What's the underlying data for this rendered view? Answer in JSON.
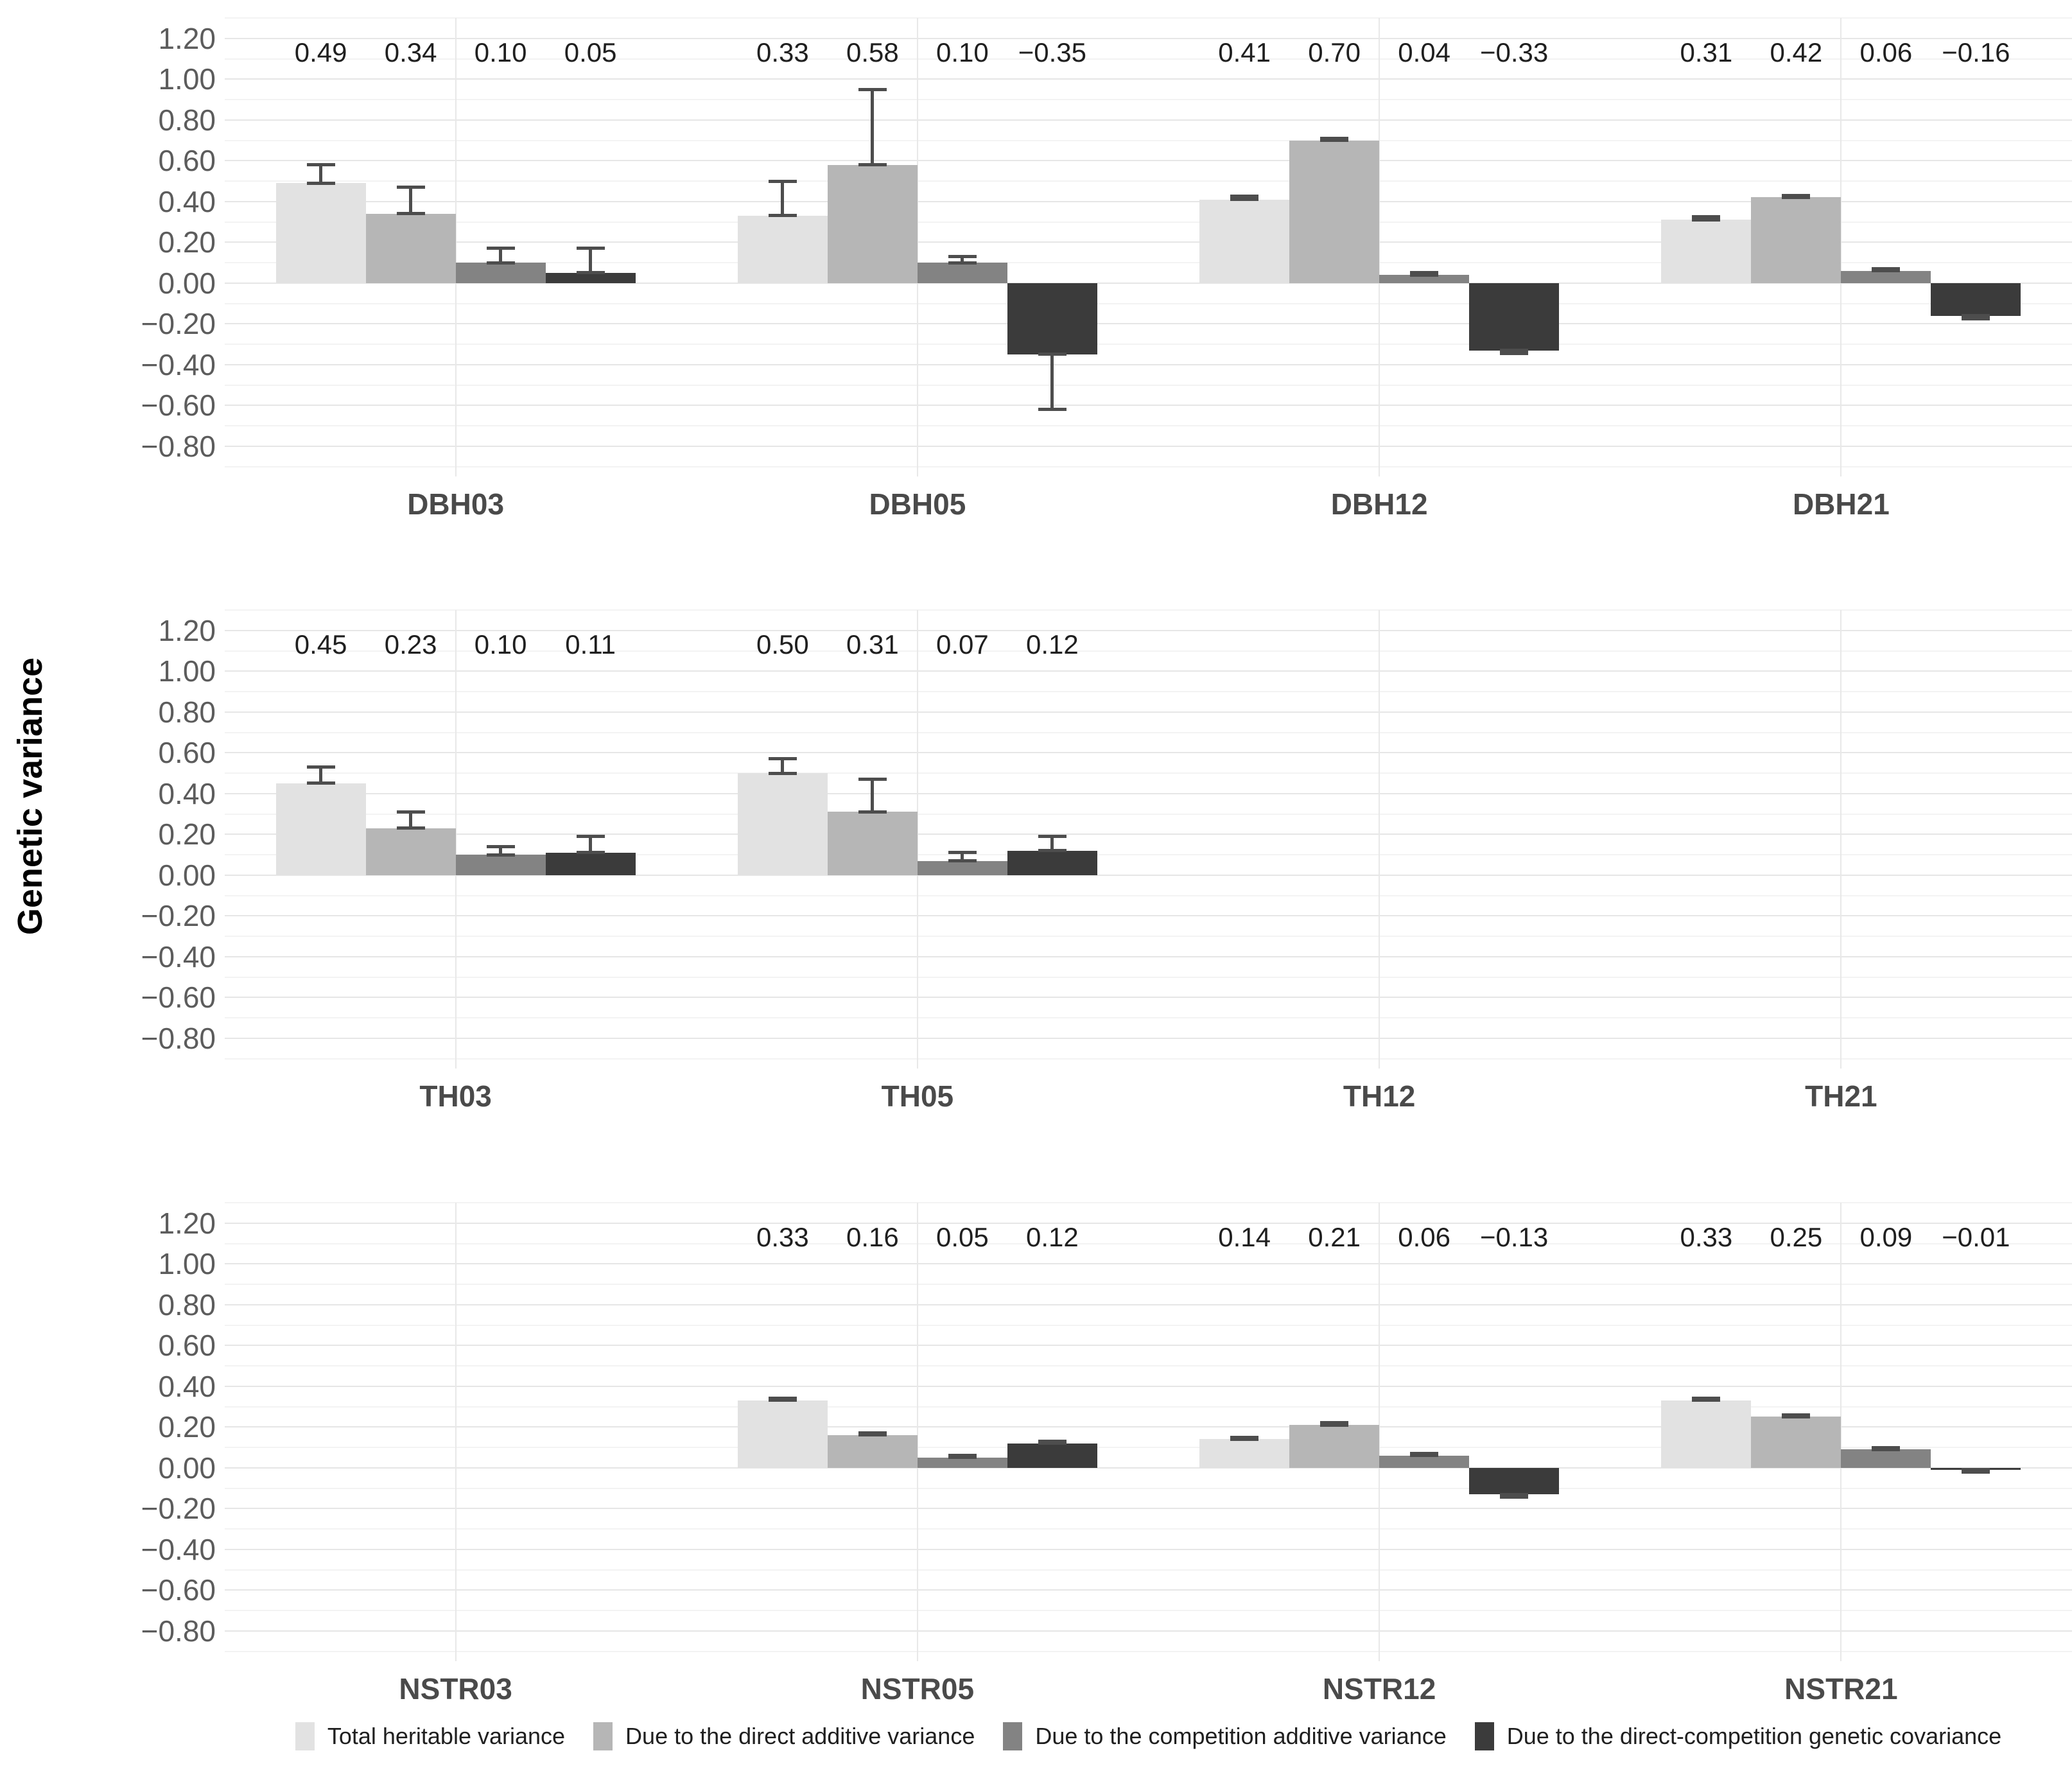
{
  "figure": {
    "y_axis_title": "Genetic variance",
    "background": "#ffffff"
  },
  "legend": {
    "items": [
      {
        "label": "Total heritable variance",
        "color": "#e2e2e2"
      },
      {
        "label": "Due to the direct additive variance",
        "color": "#b6b6b6"
      },
      {
        "label": "Due to the competition additive variance",
        "color": "#838383"
      },
      {
        "label": "Due to the direct-competition genetic covariance",
        "color": "#3b3b3b"
      }
    ]
  },
  "chart_data": {
    "type": "bar",
    "title": "",
    "xlabel": "",
    "ylabel": "Genetic variance",
    "ylim": [
      -0.8,
      1.2
    ],
    "ytick_step": 0.2,
    "minor_grid": true,
    "grid": true,
    "legend_position": "bottom",
    "error_bars": true,
    "value_labels_shown_at_y": 1.13,
    "series_names": [
      "Total heritable variance",
      "Due to the direct additive variance",
      "Due to the competition additive variance",
      "Due to the direct-competition genetic covariance"
    ],
    "bar_colors": [
      "#e2e2e2",
      "#b6b6b6",
      "#838383",
      "#3b3b3b"
    ],
    "rows": [
      {
        "panels": [
          {
            "category": "DBH03",
            "values": [
              0.49,
              0.34,
              0.1,
              0.05
            ],
            "errors": [
              0.09,
              0.13,
              0.07,
              0.12
            ]
          },
          {
            "category": "DBH05",
            "values": [
              0.33,
              0.58,
              0.1,
              -0.35
            ],
            "errors": [
              0.17,
              0.37,
              0.03,
              0.27
            ]
          },
          {
            "category": "DBH12",
            "values": [
              0.41,
              0.7,
              0.04,
              -0.33
            ],
            "errors": [
              0.015,
              0.01,
              0.01,
              0.015
            ]
          },
          {
            "category": "DBH21",
            "values": [
              0.31,
              0.42,
              0.06,
              -0.16
            ],
            "errors": [
              0.015,
              0.01,
              0.01,
              0.015
            ]
          }
        ]
      },
      {
        "panels": [
          {
            "category": "TH03",
            "values": [
              0.45,
              0.23,
              0.1,
              0.11
            ],
            "errors": [
              0.08,
              0.08,
              0.04,
              0.08
            ]
          },
          {
            "category": "TH05",
            "values": [
              0.5,
              0.31,
              0.07,
              0.12
            ],
            "errors": [
              0.07,
              0.16,
              0.04,
              0.07
            ]
          },
          {
            "category": "TH12",
            "values": null,
            "errors": null
          },
          {
            "category": "TH21",
            "values": null,
            "errors": null
          }
        ]
      },
      {
        "panels": [
          {
            "category": "NSTR03",
            "values": null,
            "errors": null
          },
          {
            "category": "NSTR05",
            "values": [
              0.33,
              0.16,
              0.05,
              0.12
            ],
            "errors": [
              0.01,
              0.01,
              0.01,
              0.01
            ]
          },
          {
            "category": "NSTR12",
            "values": [
              0.14,
              0.21,
              0.06,
              -0.13
            ],
            "errors": [
              0.01,
              0.01,
              0.01,
              0.015
            ]
          },
          {
            "category": "NSTR21",
            "values": [
              0.33,
              0.25,
              0.09,
              -0.01
            ],
            "errors": [
              0.01,
              0.01,
              0.01,
              0.01
            ]
          }
        ]
      }
    ]
  }
}
